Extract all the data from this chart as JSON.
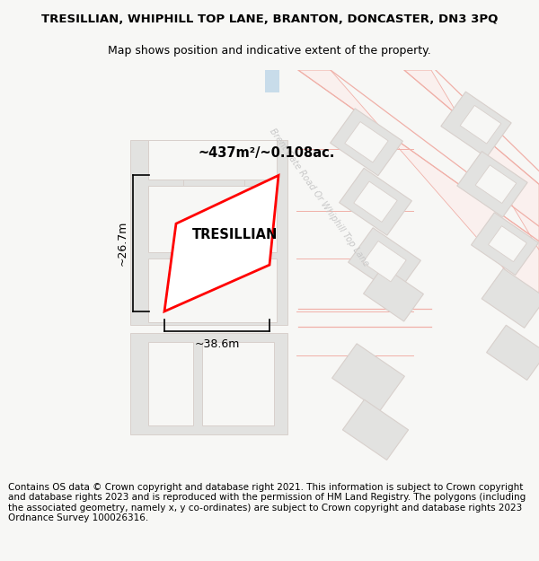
{
  "title_line1": "TRESILLIAN, WHIPHILL TOP LANE, BRANTON, DONCASTER, DN3 3PQ",
  "title_line2": "Map shows position and indicative extent of the property.",
  "footer_text": "Contains OS data © Crown copyright and database right 2021. This information is subject to Crown copyright and database rights 2023 and is reproduced with the permission of HM Land Registry. The polygons (including the associated geometry, namely x, y co-ordinates) are subject to Crown copyright and database rights 2023 Ordnance Survey 100026316.",
  "area_label": "~437m²/~0.108ac.",
  "property_label": "TRESILLIAN",
  "width_label": "~38.6m",
  "height_label": "~26.7m",
  "bg_color": "#f7f7f5",
  "road_line_color": "#f0b0a8",
  "road_fill_color": "#faf0ee",
  "building_fill": "#e2e2e0",
  "building_edge": "#d8d0cc",
  "plot_edge": "#ff0000",
  "plot_fill": "#ffffff",
  "water_color": "#c8dcea",
  "road_label_color": "#c8c8c8",
  "title_fontsize": 9.5,
  "subtitle_fontsize": 9.0,
  "footer_fontsize": 7.5
}
